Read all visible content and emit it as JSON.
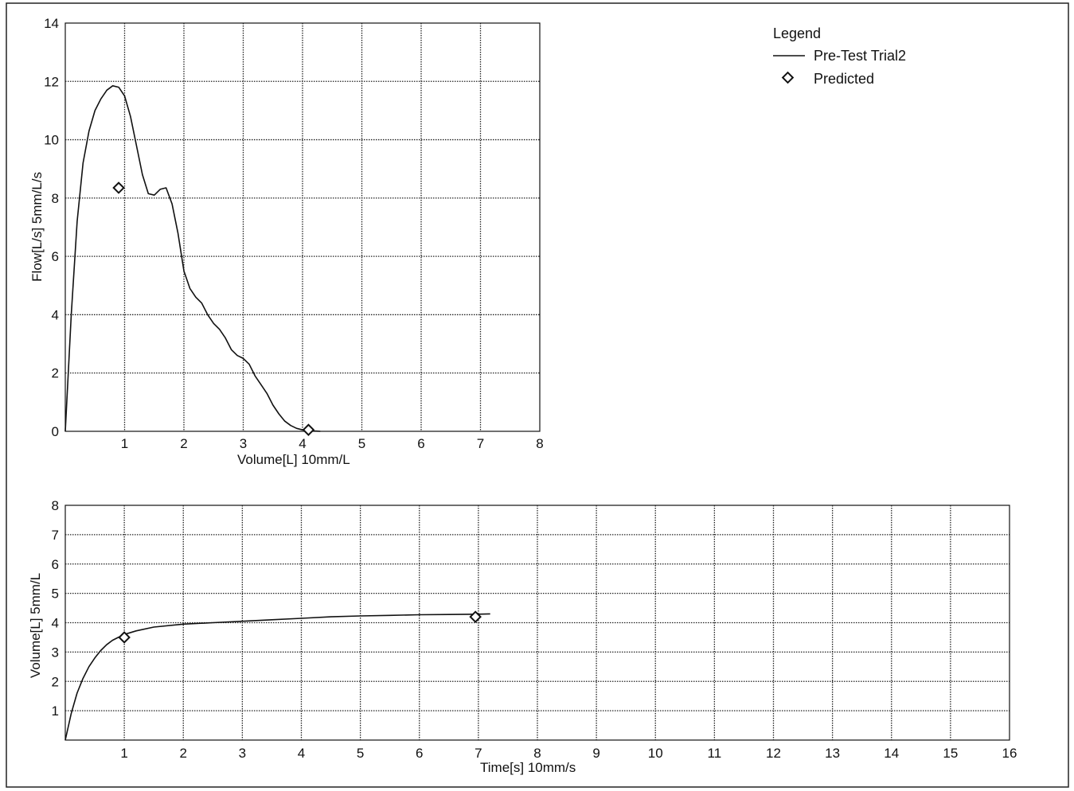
{
  "legend": {
    "title": "Legend",
    "entries": [
      {
        "label": "Pre-Test Trial2",
        "marker": "line"
      },
      {
        "label": "Predicted",
        "marker": "diamond"
      }
    ]
  },
  "chart_data": [
    {
      "type": "line",
      "xlabel": "Volume[L] 10mm/L",
      "ylabel": "Flow[L/s] 5mm/L/s",
      "xlim": [
        0,
        8
      ],
      "ylim": [
        0,
        14
      ],
      "xticks": [
        "1",
        "2",
        "3",
        "4",
        "5",
        "6",
        "7",
        "8"
      ],
      "yticks": [
        "0",
        "2",
        "4",
        "6",
        "8",
        "10",
        "12",
        "14"
      ],
      "grid": true,
      "series": [
        {
          "name": "Pre-Test Trial2",
          "x": [
            0,
            0.1,
            0.2,
            0.3,
            0.4,
            0.5,
            0.6,
            0.7,
            0.8,
            0.9,
            1.0,
            1.1,
            1.2,
            1.3,
            1.4,
            1.5,
            1.6,
            1.7,
            1.8,
            1.9,
            2.0,
            2.1,
            2.2,
            2.3,
            2.4,
            2.5,
            2.6,
            2.7,
            2.8,
            2.9,
            3.0,
            3.1,
            3.2,
            3.3,
            3.4,
            3.5,
            3.6,
            3.7,
            3.8,
            3.9,
            4.0,
            4.1,
            4.2,
            4.3
          ],
          "y": [
            0,
            4.0,
            7.2,
            9.2,
            10.3,
            11.0,
            11.4,
            11.7,
            11.85,
            11.8,
            11.5,
            10.8,
            9.8,
            8.8,
            8.15,
            8.1,
            8.3,
            8.35,
            7.8,
            6.8,
            5.5,
            4.9,
            4.6,
            4.4,
            4.0,
            3.7,
            3.5,
            3.2,
            2.8,
            2.6,
            2.5,
            2.3,
            1.9,
            1.6,
            1.3,
            0.9,
            0.6,
            0.35,
            0.2,
            0.1,
            0.05,
            0.03,
            0.01,
            0
          ]
        },
        {
          "name": "Predicted",
          "x": [
            0.9,
            4.1
          ],
          "y": [
            8.35,
            0.05
          ]
        }
      ]
    },
    {
      "type": "line",
      "xlabel": "Time[s] 10mm/s",
      "ylabel": "Volume[L] 5mm/L",
      "xlim": [
        0,
        16
      ],
      "ylim": [
        0,
        8
      ],
      "xticks": [
        "1",
        "2",
        "3",
        "4",
        "5",
        "6",
        "7",
        "8",
        "9",
        "10",
        "11",
        "12",
        "13",
        "14",
        "15",
        "16"
      ],
      "yticks": [
        "1",
        "2",
        "3",
        "4",
        "5",
        "6",
        "7",
        "8"
      ],
      "grid": true,
      "series": [
        {
          "name": "Pre-Test Trial2",
          "x": [
            0,
            0.1,
            0.2,
            0.3,
            0.4,
            0.5,
            0.6,
            0.7,
            0.8,
            0.9,
            1.0,
            1.2,
            1.5,
            2.0,
            2.5,
            3.0,
            3.5,
            4.0,
            4.5,
            5.0,
            5.5,
            6.0,
            6.5,
            7.0,
            7.2
          ],
          "y": [
            0,
            0.9,
            1.6,
            2.1,
            2.5,
            2.8,
            3.05,
            3.25,
            3.4,
            3.5,
            3.6,
            3.72,
            3.85,
            3.95,
            4.0,
            4.05,
            4.1,
            4.15,
            4.2,
            4.23,
            4.25,
            4.27,
            4.28,
            4.29,
            4.3
          ]
        },
        {
          "name": "Predicted",
          "x": [
            1.0,
            6.95
          ],
          "y": [
            3.5,
            4.2
          ]
        }
      ]
    }
  ]
}
